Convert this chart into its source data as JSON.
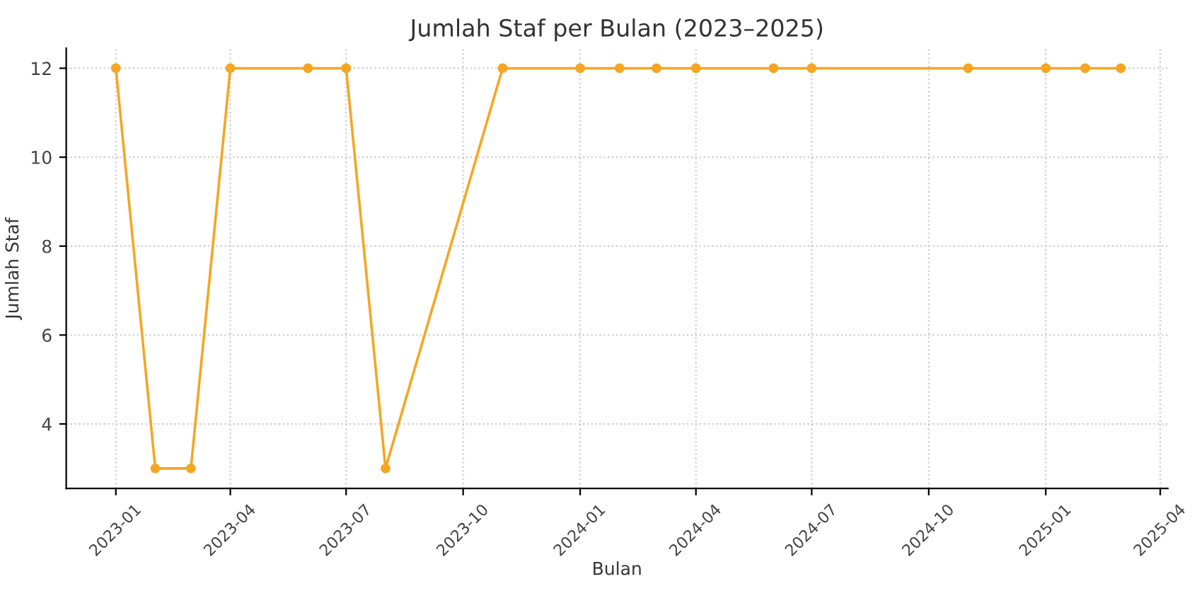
{
  "chart_data": {
    "type": "line",
    "title": "Jumlah Staf per Bulan (2023–2025)",
    "xlabel": "Bulan",
    "ylabel": "Jumlah Staf",
    "x": [
      "2023-01-01",
      "2023-02-01",
      "2023-03-01",
      "2023-04-01",
      "2023-06-01",
      "2023-07-01",
      "2023-08-01",
      "2023-11-01",
      "2024-01-01",
      "2024-02-01",
      "2024-03-01",
      "2024-04-01",
      "2024-06-01",
      "2024-07-01",
      "2024-11-01",
      "2025-01-01",
      "2025-02-01",
      "2025-03-01"
    ],
    "series": [
      {
        "color": "#f5a623",
        "values": [
          12,
          3,
          3,
          12,
          12,
          12,
          3,
          12,
          12,
          12,
          12,
          12,
          12,
          12,
          12,
          12,
          12,
          12
        ]
      }
    ],
    "xlim": [
      "2022-11-23",
      "2025-04-07"
    ],
    "xticks": [
      {
        "value": "2023-01-01",
        "label": "2023-01"
      },
      {
        "value": "2023-04-01",
        "label": "2023-04"
      },
      {
        "value": "2023-07-01",
        "label": "2023-07"
      },
      {
        "value": "2023-10-01",
        "label": "2023-10"
      },
      {
        "value": "2024-01-01",
        "label": "2024-01"
      },
      {
        "value": "2024-04-01",
        "label": "2024-04"
      },
      {
        "value": "2024-07-01",
        "label": "2024-07"
      },
      {
        "value": "2024-10-01",
        "label": "2024-10"
      },
      {
        "value": "2025-01-01",
        "label": "2025-01"
      },
      {
        "value": "2025-04-01",
        "label": "2025-04"
      }
    ],
    "ylim": [
      2.55,
      12.45
    ],
    "yticks": [
      4,
      6,
      8,
      10,
      12
    ],
    "grid": true,
    "marker": "circle",
    "line_style": "solid",
    "legend": false
  }
}
